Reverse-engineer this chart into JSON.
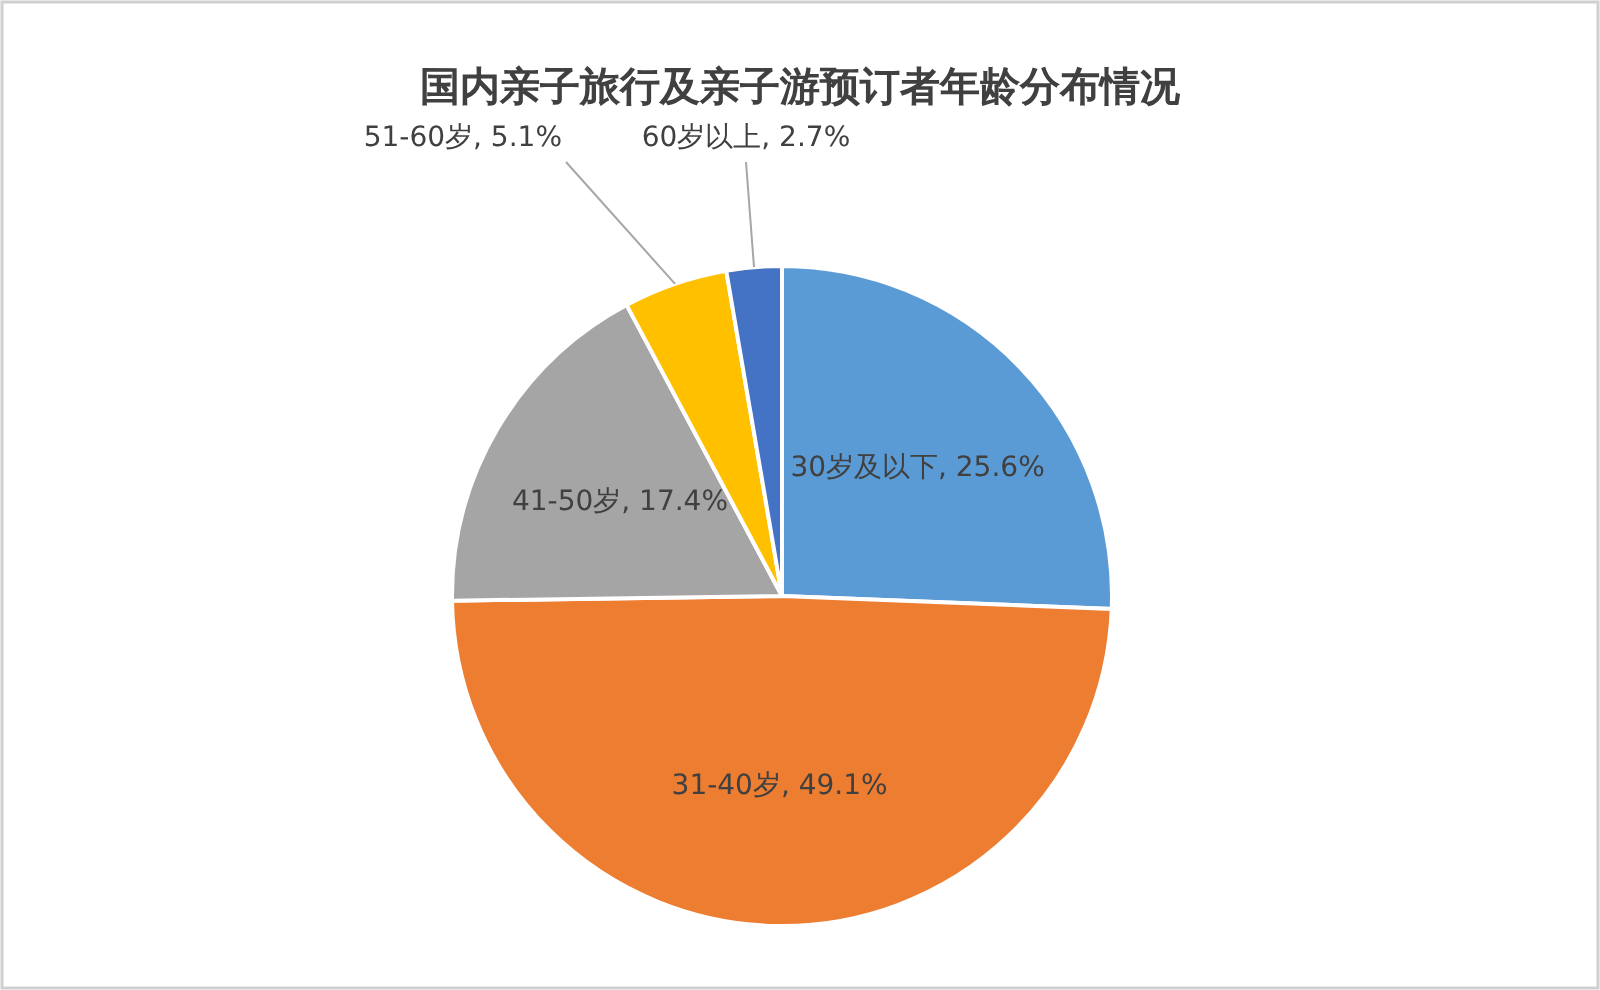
{
  "chart_data": {
    "type": "pie",
    "title": "国内亲子旅行及亲子游预订者年龄分布情况",
    "categories": [
      "30岁及以下",
      "31-40岁",
      "41-50岁",
      "51-60岁",
      "60岁以上"
    ],
    "values": [
      25.6,
      49.1,
      17.4,
      5.1,
      2.7
    ],
    "value_labels": [
      "25.6%",
      "49.1%",
      "17.4%",
      "5.1%",
      "2.7%"
    ],
    "colors": [
      "#5b9bd5",
      "#ed7d31",
      "#a5a5a5",
      "#ffc000",
      "#4472c4"
    ],
    "legend": false
  }
}
